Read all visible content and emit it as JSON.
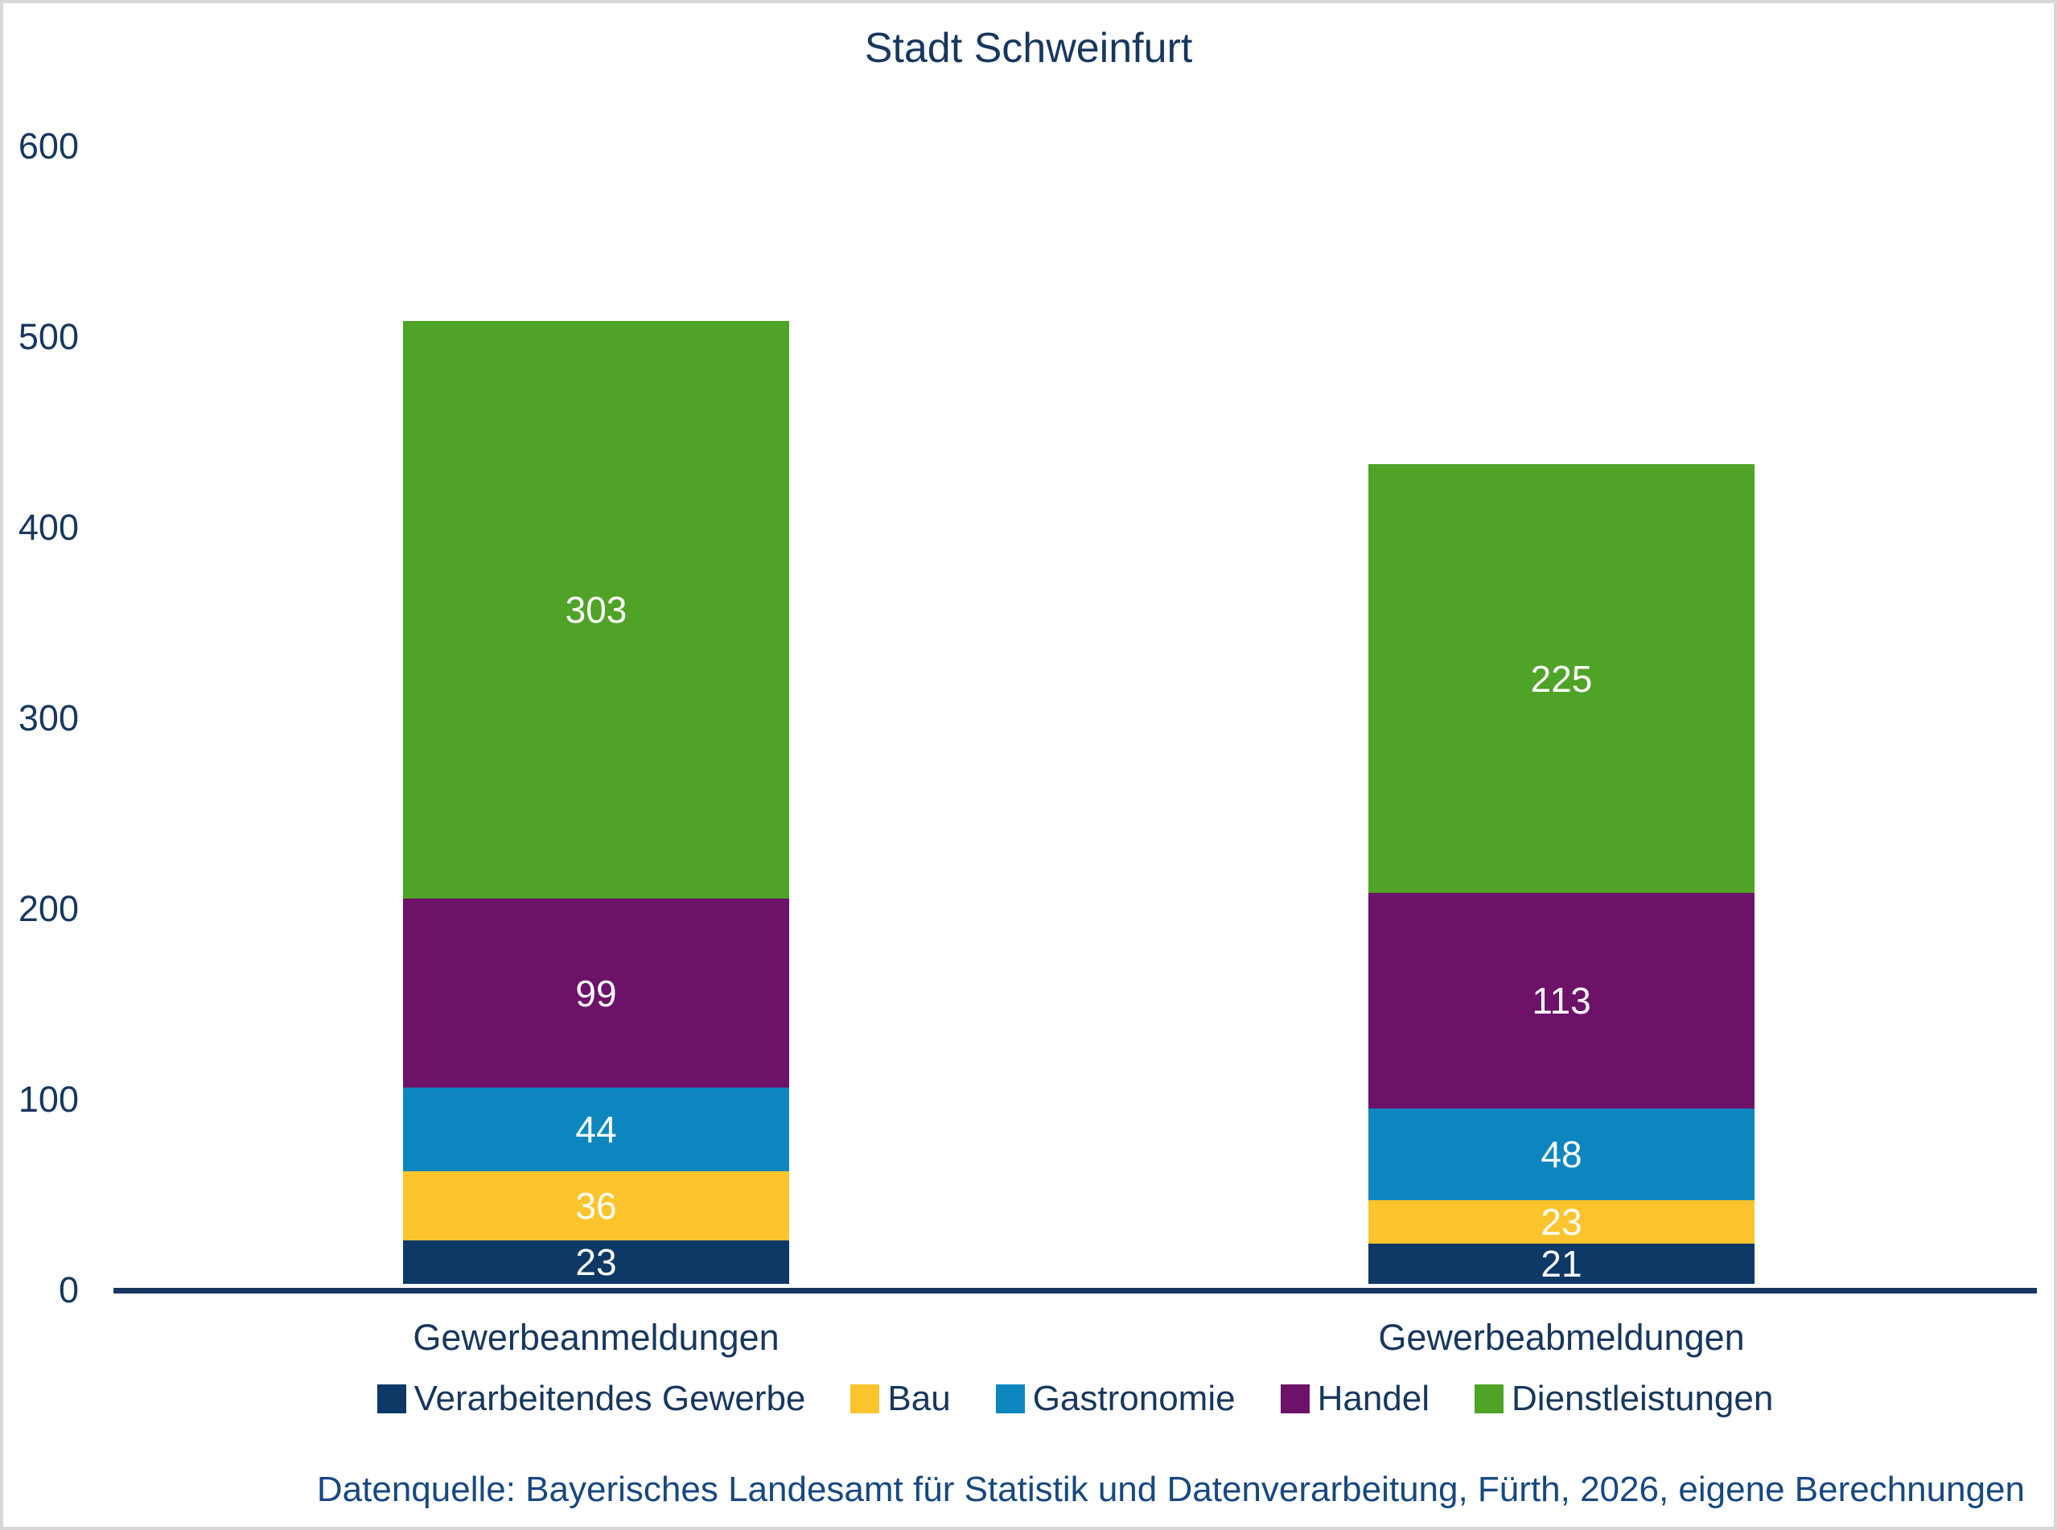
{
  "chart": {
    "title": "Stadt Schweinfurt",
    "source_note": "Datenquelle: Bayerisches Landesamt für Statistik und Datenverarbeitung, Fürth, 2026, eigene Berechnungen"
  },
  "chart_data": {
    "type": "bar",
    "stacked": true,
    "title": "Stadt Schweinfurt",
    "xlabel": "",
    "ylabel": "",
    "ylim": [
      0,
      600
    ],
    "yticks": [
      0,
      100,
      200,
      300,
      400,
      500,
      600
    ],
    "grid": false,
    "legend_position": "bottom",
    "data_labels": "values shown in white inside each segment",
    "categories": [
      "Gewerbeanmeldungen",
      "Gewerbeabmeldungen"
    ],
    "series": [
      {
        "name": "Verarbeitendes Gewerbe",
        "color": "#0e3866",
        "values": [
          23,
          21
        ]
      },
      {
        "name": "Bau",
        "color": "#fbc42c",
        "values": [
          36,
          23
        ]
      },
      {
        "name": "Gastronomie",
        "color": "#0d86bf",
        "values": [
          44,
          48
        ]
      },
      {
        "name": "Handel",
        "color": "#6c1268",
        "values": [
          99,
          113
        ]
      },
      {
        "name": "Dienstleistungen",
        "color": "#4fa327",
        "values": [
          303,
          225
        ]
      }
    ],
    "totals": [
      505,
      430
    ]
  },
  "layout_colors": {
    "text": "#17375e",
    "source_text": "#174880",
    "axis_line": "#17375e",
    "background": "#ffffff",
    "frame_border": "#d7d7d7",
    "bar_value_label": "#ffffff"
  }
}
